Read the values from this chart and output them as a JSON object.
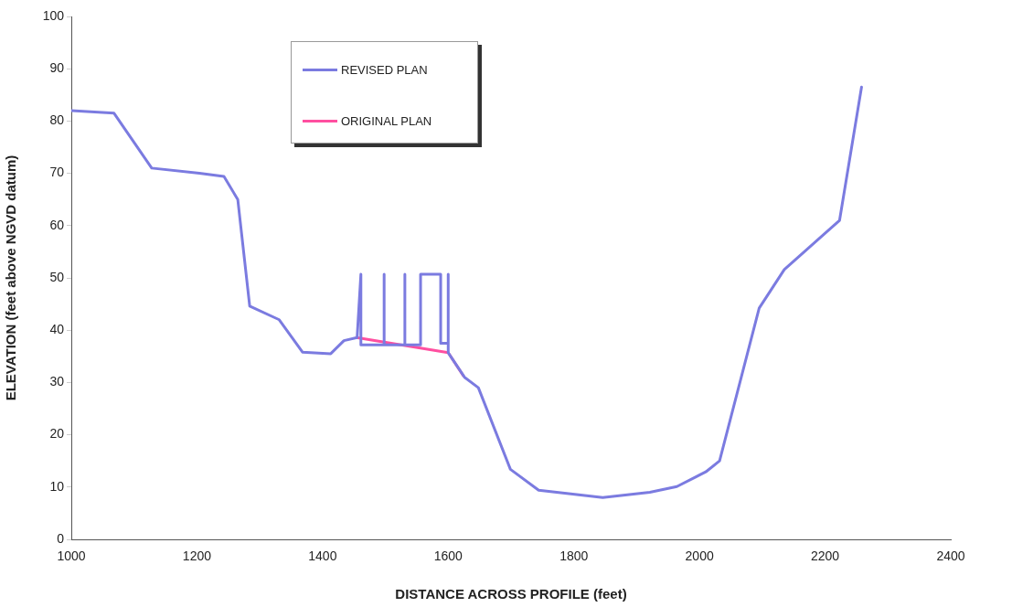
{
  "chart_data": {
    "type": "line",
    "xlabel": "DISTANCE ACROSS PROFILE (feet)",
    "ylabel": "ELEVATION (feet above NGVD datum)",
    "xlim": [
      1000,
      2400
    ],
    "xticks": [
      1000,
      1200,
      1400,
      1600,
      1800,
      2000,
      2200,
      2400
    ],
    "ylim": [
      0,
      100
    ],
    "yticks": [
      0,
      10,
      20,
      30,
      40,
      50,
      60,
      70,
      80,
      90,
      100
    ],
    "legend": "top",
    "marker": "none",
    "line_style": "solid",
    "series": [
      {
        "name": "REVISED PLAN",
        "color": "#7b7be0",
        "x": [
          1000,
          1068,
          1128,
          1204,
          1243,
          1265,
          1284,
          1331,
          1368,
          1413,
          1434,
          1455,
          1461,
          1461,
          1498,
          1498,
          1498,
          1531,
          1531,
          1531,
          1556,
          1556,
          1588,
          1588,
          1600,
          1600,
          1600,
          1626,
          1648,
          1699,
          1744,
          1846,
          1921,
          1964,
          2010,
          2032,
          2095,
          2135,
          2223,
          2258
        ],
        "values": [
          82,
          81.5,
          71,
          70,
          69.4,
          65,
          44.6,
          42,
          35.8,
          35.5,
          38,
          38.6,
          50.7,
          37.2,
          37.2,
          50.7,
          37.2,
          37.2,
          50.7,
          37.2,
          37.2,
          50.7,
          50.7,
          37.5,
          37.5,
          50.7,
          35.7,
          31,
          29,
          13.4,
          9.4,
          8,
          9,
          10.1,
          12.9,
          15,
          44.2,
          51.6,
          61,
          86.5
        ]
      },
      {
        "name": "ORIGINAL PLAN",
        "color": "#ff4fa0",
        "x": [
          1454,
          1600,
          1624
        ],
        "values": [
          38.6,
          35.7,
          31.3
        ]
      }
    ]
  }
}
